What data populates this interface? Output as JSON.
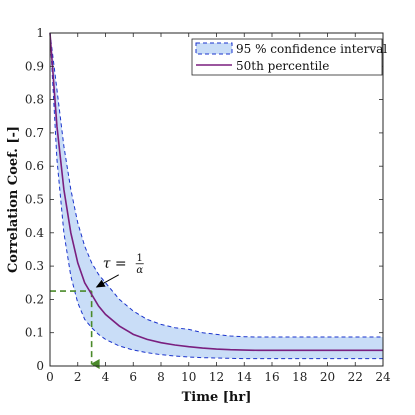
{
  "chart_data": {
    "type": "line",
    "title": "",
    "xlabel": "Time [hr]",
    "ylabel": "Correlation Coef. [-]",
    "xlim": [
      0,
      24
    ],
    "ylim": [
      0,
      1
    ],
    "xticks": [
      0,
      2,
      4,
      6,
      8,
      10,
      12,
      14,
      16,
      18,
      20,
      22,
      24
    ],
    "yticks": [
      0,
      0.1,
      0.2,
      0.3,
      0.4,
      0.5,
      0.6,
      0.7,
      0.8,
      0.9,
      1
    ],
    "grid": false,
    "legend_position": "top-right",
    "band": {
      "name": "95 % confidence interval",
      "color": "#1a33cc",
      "fill": "#c9ddf7",
      "x": [
        0,
        0.5,
        1,
        1.5,
        2,
        2.5,
        3,
        3.5,
        4,
        5,
        6,
        7,
        8,
        9,
        10,
        11,
        12,
        13,
        14,
        15,
        16,
        18,
        20,
        22,
        24
      ],
      "lower": [
        1.0,
        0.62,
        0.4,
        0.27,
        0.19,
        0.14,
        0.115,
        0.095,
        0.08,
        0.06,
        0.048,
        0.04,
        0.034,
        0.03,
        0.027,
        0.025,
        0.024,
        0.023,
        0.022,
        0.022,
        0.022,
        0.022,
        0.022,
        0.022,
        0.022
      ],
      "upper": [
        1.0,
        0.83,
        0.66,
        0.53,
        0.43,
        0.36,
        0.31,
        0.275,
        0.25,
        0.2,
        0.165,
        0.14,
        0.125,
        0.115,
        0.11,
        0.1,
        0.095,
        0.09,
        0.088,
        0.087,
        0.087,
        0.087,
        0.087,
        0.087,
        0.087
      ]
    },
    "series": [
      {
        "name": "50th percentile",
        "color": "#7a1f7f",
        "x": [
          0,
          0.5,
          1,
          1.5,
          2,
          2.5,
          3,
          3.5,
          4,
          5,
          6,
          7,
          8,
          9,
          10,
          11,
          12,
          13,
          14,
          15,
          16,
          18,
          20,
          22,
          24
        ],
        "y": [
          1.0,
          0.72,
          0.53,
          0.4,
          0.31,
          0.25,
          0.215,
          0.18,
          0.155,
          0.12,
          0.095,
          0.08,
          0.07,
          0.063,
          0.058,
          0.054,
          0.051,
          0.049,
          0.048,
          0.047,
          0.047,
          0.047,
          0.047,
          0.047,
          0.047
        ]
      }
    ],
    "annotation": {
      "tau_lhs": "τ =",
      "tau_num": "1",
      "tau_den": "α",
      "point": [
        3,
        0.225
      ],
      "text_at": [
        3.8,
        0.295
      ],
      "guide_color": "#4a8a2a"
    }
  }
}
